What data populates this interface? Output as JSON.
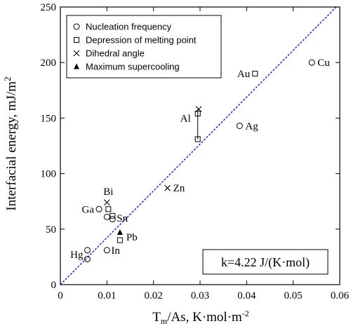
{
  "chart_data": {
    "type": "scatter",
    "xlabel": "T",
    "xlabel_sub": "m",
    "xlabel_rest": "/As, K·mol·m",
    "xlabel_sup": "-2",
    "ylabel": "Interfacial energy, mJ/m",
    "ylabel_sup": "2",
    "xlim": [
      0,
      0.06
    ],
    "ylim": [
      0,
      250
    ],
    "xticks": [
      0,
      0.01,
      0.02,
      0.03,
      0.04,
      0.05,
      0.06
    ],
    "xtick_labels": [
      "0",
      "0.01",
      "0.02",
      "0.03",
      "0.04",
      "0.05",
      "0.06"
    ],
    "yticks": [
      0,
      50,
      100,
      150,
      200,
      250
    ],
    "ytick_labels": [
      "0",
      "50",
      "100",
      "150",
      "200",
      "250"
    ],
    "grid": false,
    "legend_position": "top-left",
    "fit_line": {
      "slope": 4220,
      "color": "#1f3fcf",
      "style": "dotted"
    },
    "annotation": "k=4.22 J/(K·mol)",
    "series": [
      {
        "name": "Nucleation frequency",
        "marker": "circle",
        "points": [
          {
            "x": 0.0058,
            "y": 23
          },
          {
            "x": 0.0058,
            "y": 31
          },
          {
            "x": 0.01,
            "y": 31
          },
          {
            "x": 0.0083,
            "y": 68
          },
          {
            "x": 0.01,
            "y": 61
          },
          {
            "x": 0.0112,
            "y": 59
          },
          {
            "x": 0.0385,
            "y": 143
          },
          {
            "x": 0.054,
            "y": 200
          }
        ]
      },
      {
        "name": "Depression of melting point",
        "marker": "square",
        "points": [
          {
            "x": 0.0103,
            "y": 68
          },
          {
            "x": 0.0112,
            "y": 62
          },
          {
            "x": 0.0128,
            "y": 40
          },
          {
            "x": 0.0295,
            "y": 131
          },
          {
            "x": 0.0295,
            "y": 154
          },
          {
            "x": 0.0418,
            "y": 190
          }
        ]
      },
      {
        "name": "Dihedral angle",
        "marker": "cross",
        "points": [
          {
            "x": 0.01,
            "y": 74
          },
          {
            "x": 0.023,
            "y": 87
          },
          {
            "x": 0.0297,
            "y": 158
          }
        ]
      },
      {
        "name": "Maximum supercooling",
        "marker": "triangle",
        "points": [
          {
            "x": 0.0128,
            "y": 47
          }
        ]
      }
    ],
    "connectors": [
      {
        "x": 0.0295,
        "y1": 131,
        "y2": 158
      }
    ],
    "point_labels": [
      {
        "text": "Hg",
        "x": 0.0058,
        "y": 27,
        "anchor": "end",
        "dx": -6,
        "dy": 5
      },
      {
        "text": "In",
        "x": 0.01,
        "y": 31,
        "anchor": "start",
        "dx": 6,
        "dy": 5
      },
      {
        "text": "Pb",
        "x": 0.0128,
        "y": 43,
        "anchor": "start",
        "dx": 9,
        "dy": 5
      },
      {
        "text": "Sn",
        "x": 0.0112,
        "y": 60,
        "anchor": "start",
        "dx": 6,
        "dy": 5
      },
      {
        "text": "Ga",
        "x": 0.0083,
        "y": 68,
        "anchor": "end",
        "dx": -7,
        "dy": 5
      },
      {
        "text": "Bi",
        "x": 0.01,
        "y": 74,
        "anchor": "middle",
        "dx": 2,
        "dy": -11
      },
      {
        "text": "Zn",
        "x": 0.023,
        "y": 87,
        "anchor": "start",
        "dx": 8,
        "dy": 5
      },
      {
        "text": "Al",
        "x": 0.0295,
        "y": 150,
        "anchor": "end",
        "dx": -10,
        "dy": 5
      },
      {
        "text": "Ag",
        "x": 0.0385,
        "y": 143,
        "anchor": "start",
        "dx": 8,
        "dy": 5
      },
      {
        "text": "Au",
        "x": 0.0418,
        "y": 190,
        "anchor": "end",
        "dx": -7,
        "dy": 5
      },
      {
        "text": "Cu",
        "x": 0.054,
        "y": 200,
        "anchor": "start",
        "dx": 8,
        "dy": 5
      }
    ]
  }
}
